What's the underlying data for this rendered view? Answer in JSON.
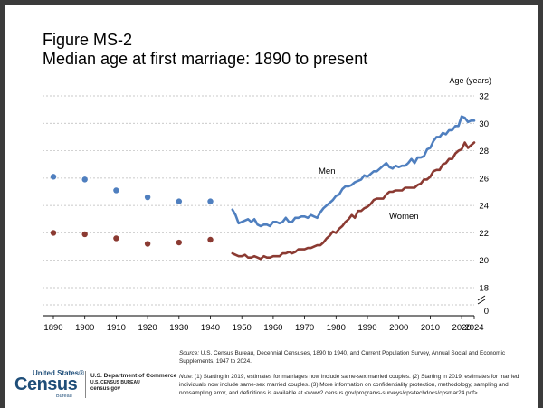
{
  "figure": {
    "title_line1": "Figure MS-2",
    "title_line2": "Median age at first marriage: 1890 to present"
  },
  "chart_data": {
    "type": "line",
    "ylabel": "Age (years)",
    "xlim": [
      1890,
      2024
    ],
    "ylim": [
      16,
      32
    ],
    "y_ticks": [
      18,
      20,
      22,
      24,
      26,
      28,
      30,
      32
    ],
    "y_axis_break_label": "0",
    "x_ticks": [
      1890,
      1900,
      1910,
      1920,
      1930,
      1940,
      1950,
      1960,
      1970,
      1980,
      1990,
      2000,
      2010,
      2020,
      2024
    ],
    "grid": true,
    "series": [
      {
        "name": "Men",
        "color": "#4f7fbf",
        "decennial_points": [
          {
            "x": 1890,
            "y": 26.1
          },
          {
            "x": 1900,
            "y": 25.9
          },
          {
            "x": 1910,
            "y": 25.1
          },
          {
            "x": 1920,
            "y": 24.6
          },
          {
            "x": 1930,
            "y": 24.3
          },
          {
            "x": 1940,
            "y": 24.3
          }
        ],
        "annual_line": [
          {
            "x": 1947,
            "y": 23.7
          },
          {
            "x": 1948,
            "y": 23.3
          },
          {
            "x": 1949,
            "y": 22.7
          },
          {
            "x": 1950,
            "y": 22.8
          },
          {
            "x": 1951,
            "y": 22.9
          },
          {
            "x": 1952,
            "y": 23.0
          },
          {
            "x": 1953,
            "y": 22.8
          },
          {
            "x": 1954,
            "y": 23.0
          },
          {
            "x": 1955,
            "y": 22.6
          },
          {
            "x": 1956,
            "y": 22.5
          },
          {
            "x": 1957,
            "y": 22.6
          },
          {
            "x": 1958,
            "y": 22.6
          },
          {
            "x": 1959,
            "y": 22.5
          },
          {
            "x": 1960,
            "y": 22.8
          },
          {
            "x": 1961,
            "y": 22.8
          },
          {
            "x": 1962,
            "y": 22.7
          },
          {
            "x": 1963,
            "y": 22.8
          },
          {
            "x": 1964,
            "y": 23.1
          },
          {
            "x": 1965,
            "y": 22.8
          },
          {
            "x": 1966,
            "y": 22.8
          },
          {
            "x": 1967,
            "y": 23.1
          },
          {
            "x": 1968,
            "y": 23.1
          },
          {
            "x": 1969,
            "y": 23.2
          },
          {
            "x": 1970,
            "y": 23.2
          },
          {
            "x": 1971,
            "y": 23.1
          },
          {
            "x": 1972,
            "y": 23.3
          },
          {
            "x": 1973,
            "y": 23.2
          },
          {
            "x": 1974,
            "y": 23.1
          },
          {
            "x": 1975,
            "y": 23.5
          },
          {
            "x": 1976,
            "y": 23.8
          },
          {
            "x": 1977,
            "y": 24.0
          },
          {
            "x": 1978,
            "y": 24.2
          },
          {
            "x": 1979,
            "y": 24.4
          },
          {
            "x": 1980,
            "y": 24.7
          },
          {
            "x": 1981,
            "y": 24.8
          },
          {
            "x": 1982,
            "y": 25.2
          },
          {
            "x": 1983,
            "y": 25.4
          },
          {
            "x": 1984,
            "y": 25.4
          },
          {
            "x": 1985,
            "y": 25.5
          },
          {
            "x": 1986,
            "y": 25.7
          },
          {
            "x": 1987,
            "y": 25.8
          },
          {
            "x": 1988,
            "y": 25.9
          },
          {
            "x": 1989,
            "y": 26.2
          },
          {
            "x": 1990,
            "y": 26.1
          },
          {
            "x": 1991,
            "y": 26.3
          },
          {
            "x": 1992,
            "y": 26.5
          },
          {
            "x": 1993,
            "y": 26.5
          },
          {
            "x": 1994,
            "y": 26.7
          },
          {
            "x": 1995,
            "y": 26.9
          },
          {
            "x": 1996,
            "y": 27.1
          },
          {
            "x": 1997,
            "y": 26.8
          },
          {
            "x": 1998,
            "y": 26.7
          },
          {
            "x": 1999,
            "y": 26.9
          },
          {
            "x": 2000,
            "y": 26.8
          },
          {
            "x": 2001,
            "y": 26.9
          },
          {
            "x": 2002,
            "y": 26.9
          },
          {
            "x": 2003,
            "y": 27.1
          },
          {
            "x": 2004,
            "y": 27.4
          },
          {
            "x": 2005,
            "y": 27.1
          },
          {
            "x": 2006,
            "y": 27.5
          },
          {
            "x": 2007,
            "y": 27.5
          },
          {
            "x": 2008,
            "y": 27.6
          },
          {
            "x": 2009,
            "y": 28.1
          },
          {
            "x": 2010,
            "y": 28.2
          },
          {
            "x": 2011,
            "y": 28.7
          },
          {
            "x": 2012,
            "y": 29.0
          },
          {
            "x": 2013,
            "y": 29.0
          },
          {
            "x": 2014,
            "y": 29.3
          },
          {
            "x": 2015,
            "y": 29.2
          },
          {
            "x": 2016,
            "y": 29.5
          },
          {
            "x": 2017,
            "y": 29.5
          },
          {
            "x": 2018,
            "y": 29.8
          },
          {
            "x": 2019,
            "y": 29.8
          },
          {
            "x": 2020,
            "y": 30.5
          },
          {
            "x": 2021,
            "y": 30.4
          },
          {
            "x": 2022,
            "y": 30.1
          },
          {
            "x": 2023,
            "y": 30.2
          },
          {
            "x": 2024,
            "y": 30.2
          }
        ]
      },
      {
        "name": "Women",
        "color": "#8b3a32",
        "decennial_points": [
          {
            "x": 1890,
            "y": 22.0
          },
          {
            "x": 1900,
            "y": 21.9
          },
          {
            "x": 1910,
            "y": 21.6
          },
          {
            "x": 1920,
            "y": 21.2
          },
          {
            "x": 1930,
            "y": 21.3
          },
          {
            "x": 1940,
            "y": 21.5
          }
        ],
        "annual_line": [
          {
            "x": 1947,
            "y": 20.5
          },
          {
            "x": 1948,
            "y": 20.4
          },
          {
            "x": 1949,
            "y": 20.3
          },
          {
            "x": 1950,
            "y": 20.3
          },
          {
            "x": 1951,
            "y": 20.4
          },
          {
            "x": 1952,
            "y": 20.2
          },
          {
            "x": 1953,
            "y": 20.2
          },
          {
            "x": 1954,
            "y": 20.3
          },
          {
            "x": 1955,
            "y": 20.2
          },
          {
            "x": 1956,
            "y": 20.1
          },
          {
            "x": 1957,
            "y": 20.3
          },
          {
            "x": 1958,
            "y": 20.2
          },
          {
            "x": 1959,
            "y": 20.2
          },
          {
            "x": 1960,
            "y": 20.3
          },
          {
            "x": 1961,
            "y": 20.3
          },
          {
            "x": 1962,
            "y": 20.3
          },
          {
            "x": 1963,
            "y": 20.5
          },
          {
            "x": 1964,
            "y": 20.5
          },
          {
            "x": 1965,
            "y": 20.6
          },
          {
            "x": 1966,
            "y": 20.5
          },
          {
            "x": 1967,
            "y": 20.6
          },
          {
            "x": 1968,
            "y": 20.8
          },
          {
            "x": 1969,
            "y": 20.8
          },
          {
            "x": 1970,
            "y": 20.8
          },
          {
            "x": 1971,
            "y": 20.9
          },
          {
            "x": 1972,
            "y": 20.9
          },
          {
            "x": 1973,
            "y": 21.0
          },
          {
            "x": 1974,
            "y": 21.1
          },
          {
            "x": 1975,
            "y": 21.1
          },
          {
            "x": 1976,
            "y": 21.3
          },
          {
            "x": 1977,
            "y": 21.6
          },
          {
            "x": 1978,
            "y": 21.8
          },
          {
            "x": 1979,
            "y": 22.1
          },
          {
            "x": 1980,
            "y": 22.0
          },
          {
            "x": 1981,
            "y": 22.3
          },
          {
            "x": 1982,
            "y": 22.5
          },
          {
            "x": 1983,
            "y": 22.8
          },
          {
            "x": 1984,
            "y": 23.0
          },
          {
            "x": 1985,
            "y": 23.3
          },
          {
            "x": 1986,
            "y": 23.1
          },
          {
            "x": 1987,
            "y": 23.6
          },
          {
            "x": 1988,
            "y": 23.6
          },
          {
            "x": 1989,
            "y": 23.8
          },
          {
            "x": 1990,
            "y": 23.9
          },
          {
            "x": 1991,
            "y": 24.1
          },
          {
            "x": 1992,
            "y": 24.4
          },
          {
            "x": 1993,
            "y": 24.5
          },
          {
            "x": 1994,
            "y": 24.5
          },
          {
            "x": 1995,
            "y": 24.5
          },
          {
            "x": 1996,
            "y": 24.8
          },
          {
            "x": 1997,
            "y": 25.0
          },
          {
            "x": 1998,
            "y": 25.0
          },
          {
            "x": 1999,
            "y": 25.1
          },
          {
            "x": 2000,
            "y": 25.1
          },
          {
            "x": 2001,
            "y": 25.1
          },
          {
            "x": 2002,
            "y": 25.3
          },
          {
            "x": 2003,
            "y": 25.3
          },
          {
            "x": 2004,
            "y": 25.3
          },
          {
            "x": 2005,
            "y": 25.3
          },
          {
            "x": 2006,
            "y": 25.5
          },
          {
            "x": 2007,
            "y": 25.6
          },
          {
            "x": 2008,
            "y": 25.9
          },
          {
            "x": 2009,
            "y": 25.9
          },
          {
            "x": 2010,
            "y": 26.1
          },
          {
            "x": 2011,
            "y": 26.5
          },
          {
            "x": 2012,
            "y": 26.6
          },
          {
            "x": 2013,
            "y": 26.6
          },
          {
            "x": 2014,
            "y": 27.0
          },
          {
            "x": 2015,
            "y": 27.1
          },
          {
            "x": 2016,
            "y": 27.4
          },
          {
            "x": 2017,
            "y": 27.4
          },
          {
            "x": 2018,
            "y": 27.8
          },
          {
            "x": 2019,
            "y": 28.0
          },
          {
            "x": 2020,
            "y": 28.1
          },
          {
            "x": 2021,
            "y": 28.6
          },
          {
            "x": 2022,
            "y": 28.2
          },
          {
            "x": 2023,
            "y": 28.4
          },
          {
            "x": 2024,
            "y": 28.6
          }
        ]
      }
    ]
  },
  "source": {
    "label": "Source:",
    "text": " U.S. Census Bureau, Decennial Censuses, 1890 to 1940, and Current Population Survey, Annual Social and Economic Supplements, 1947 to 2024."
  },
  "note": {
    "label": "Note:",
    "text": " (1) Starting in 2019, estimates for marriages now include same-sex married couples. (2) Starting in 2019, estimates for married individuals now include same-sex married couples. (3) More information on confidentiality protection, methodology, sampling and nonsampling error, and definitions is available at <www2.census.gov/programs-surveys/cps/techdocs/cpsmar24.pdf>."
  },
  "footer": {
    "logo_top": "United States®",
    "logo_main": "Census",
    "logo_bureau": "Bureau",
    "dept_line1": "U.S. Department of Commerce",
    "dept_line2": "U.S. CENSUS BUREAU",
    "dept_line3": "census.gov"
  }
}
